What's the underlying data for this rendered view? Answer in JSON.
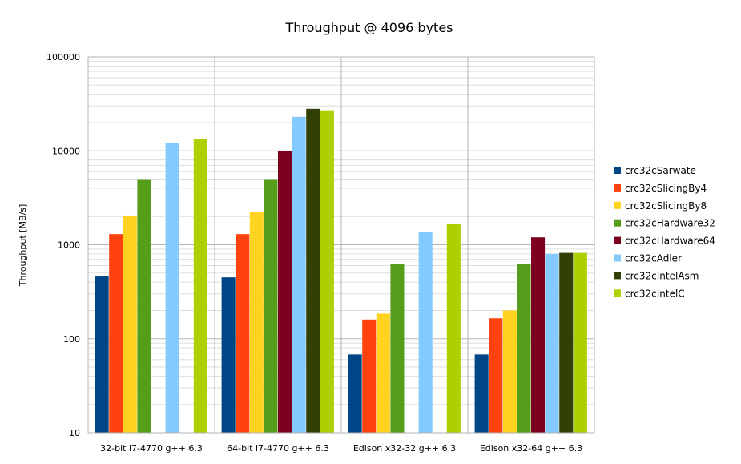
{
  "chart_data": {
    "type": "bar",
    "title": "Throughput @ 4096 bytes",
    "xlabel": "",
    "ylabel": "Throughput [MB/s]",
    "yscale": "log",
    "ylim": [
      10,
      100000
    ],
    "yticks": [
      "10",
      "100",
      "1000",
      "10000",
      "100000"
    ],
    "categories": [
      "32-bit i7-4770 g++ 6.3",
      "64-bit i7-4770 g++ 6.3",
      "Edison x32-32 g++ 6.3",
      "Edison x32-64 g++ 6.3"
    ],
    "grid": true,
    "legend_position": "right",
    "series": [
      {
        "name": "crc32cSarwate",
        "color": "#004586",
        "values": [
          460,
          450,
          68,
          68
        ]
      },
      {
        "name": "crc32cSlicingBy4",
        "color": "#ff420e",
        "values": [
          1300,
          1300,
          160,
          165
        ]
      },
      {
        "name": "crc32cSlicingBy8",
        "color": "#ffd320",
        "values": [
          2050,
          2250,
          185,
          200
        ]
      },
      {
        "name": "crc32cHardware32",
        "color": "#579d1c",
        "values": [
          5000,
          5000,
          620,
          630
        ]
      },
      {
        "name": "crc32cHardware64",
        "color": "#7e0021",
        "values": [
          null,
          10000,
          null,
          1200
        ]
      },
      {
        "name": "crc32cAdler",
        "color": "#83caff",
        "values": [
          12000,
          23000,
          1370,
          800
        ]
      },
      {
        "name": "crc32cIntelAsm",
        "color": "#314004",
        "values": [
          null,
          28000,
          null,
          820
        ]
      },
      {
        "name": "crc32cIntelC",
        "color": "#aecf00",
        "values": [
          13500,
          27000,
          1650,
          820
        ]
      }
    ]
  }
}
